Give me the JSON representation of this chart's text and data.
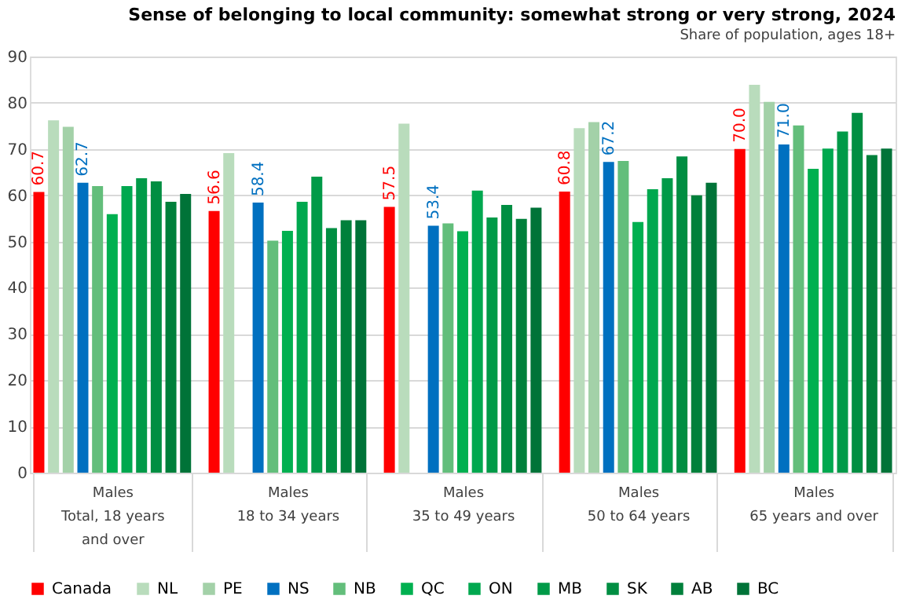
{
  "chart_data": {
    "type": "bar",
    "title": "Sense of belonging to local community: somewhat strong or very strong, 2024",
    "subtitle": "Share of population, ages 18+",
    "categories": [
      "Males\nTotal, 18 years and over",
      "Males\n18 to 34 years",
      "Males\n35 to 49 years",
      "Males\n50 to 64 years",
      "Males\n65 years and over"
    ],
    "series": [
      {
        "name": "Canada",
        "color": "#ff0000",
        "values": [
          60.7,
          56.6,
          57.5,
          60.8,
          70.0
        ],
        "value_labels": [
          "60.7",
          "56.6",
          "57.5",
          "60.8",
          "70.0"
        ]
      },
      {
        "name": "NL",
        "color": "#b9dcbc",
        "values": [
          76.2,
          69.1,
          75.5,
          74.5,
          83.9
        ]
      },
      {
        "name": "PE",
        "color": "#a3d1a8",
        "values": [
          74.8,
          null,
          null,
          75.8,
          80.2
        ]
      },
      {
        "name": "NS",
        "color": "#0070c0",
        "values": [
          62.7,
          58.4,
          53.4,
          67.2,
          71.0
        ],
        "value_labels": [
          "62.7",
          "58.4",
          "53.4",
          "67.2",
          "71.0"
        ]
      },
      {
        "name": "NB",
        "color": "#63be7b",
        "values": [
          62.0,
          50.2,
          53.9,
          67.4,
          75.1
        ]
      },
      {
        "name": "QC",
        "color": "#00b050",
        "values": [
          55.9,
          52.3,
          52.2,
          54.2,
          65.7
        ]
      },
      {
        "name": "ON",
        "color": "#00a84f",
        "values": [
          62.0,
          58.6,
          61.0,
          61.3,
          70.1
        ]
      },
      {
        "name": "MB",
        "color": "#009a48",
        "values": [
          63.7,
          64.0,
          55.2,
          63.7,
          73.8
        ]
      },
      {
        "name": "SK",
        "color": "#008e42",
        "values": [
          63.0,
          52.9,
          57.9,
          68.4,
          77.8
        ]
      },
      {
        "name": "AB",
        "color": "#00803b",
        "values": [
          58.6,
          54.6,
          54.9,
          60.0,
          68.7
        ]
      },
      {
        "name": "BC",
        "color": "#007338",
        "values": [
          60.3,
          54.6,
          57.3,
          62.7,
          70.1
        ]
      }
    ],
    "ylim": [
      0,
      90
    ],
    "yticks": [
      0,
      10,
      20,
      30,
      40,
      50,
      60,
      70,
      80,
      90
    ],
    "grid": "y",
    "legend": "bottom"
  }
}
